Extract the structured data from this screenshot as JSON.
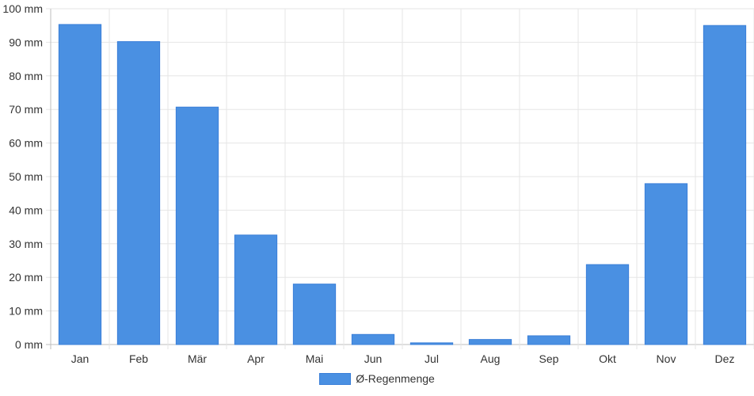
{
  "chart_data": {
    "type": "bar",
    "categories": [
      "Jan",
      "Feb",
      "Mär",
      "Apr",
      "Mai",
      "Jun",
      "Jul",
      "Aug",
      "Sep",
      "Okt",
      "Nov",
      "Dez"
    ],
    "series": [
      {
        "name": "Ø-Regenmenge",
        "values": [
          95.3,
          90.2,
          70.7,
          32.6,
          18.0,
          3.0,
          0.5,
          1.5,
          2.6,
          23.8,
          47.9,
          95.0
        ],
        "color": "#4a90e2"
      }
    ],
    "y_ticks": [
      "0 mm",
      "10 mm",
      "20 mm",
      "30 mm",
      "40 mm",
      "50 mm",
      "60 mm",
      "70 mm",
      "80 mm",
      "90 mm",
      "100 mm"
    ],
    "ylim": [
      0,
      100
    ],
    "grid": true,
    "legend_position": "bottom"
  }
}
